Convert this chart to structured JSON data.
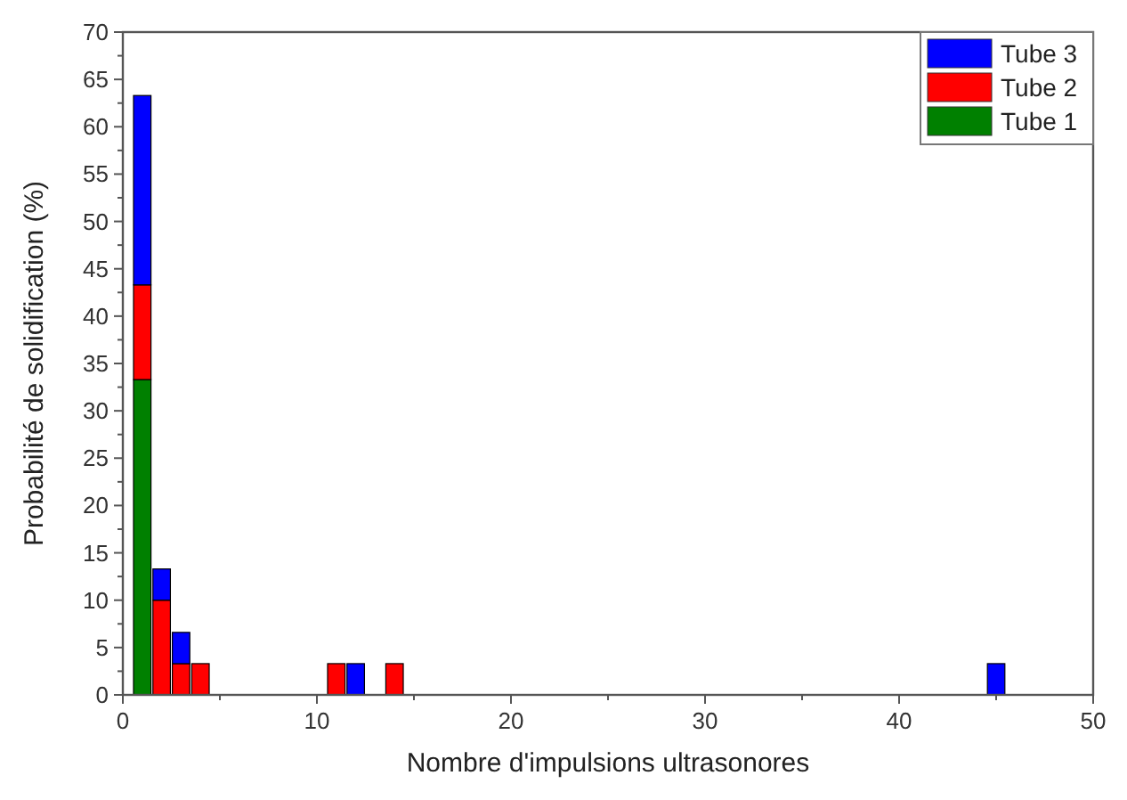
{
  "chart_data": {
    "type": "bar",
    "stacked": true,
    "xlabel": "Nombre d'impulsions ultrasonores",
    "ylabel": "Probabilité de solidification (%)",
    "x": [
      1,
      2,
      3,
      4,
      11,
      12,
      14,
      45
    ],
    "series": [
      {
        "name": "Tube 1",
        "color": "#008000",
        "values": [
          33.3,
          null,
          null,
          null,
          null,
          null,
          null,
          null
        ]
      },
      {
        "name": "Tube 2",
        "color": "#ff0000",
        "values": [
          10,
          10,
          3.3,
          3.3,
          3.3,
          null,
          3.3,
          null
        ]
      },
      {
        "name": "Tube 3",
        "color": "#0000ff",
        "values": [
          20,
          3.3,
          3.3,
          null,
          null,
          3.3,
          null,
          3.3
        ]
      }
    ],
    "xlim": [
      0,
      50
    ],
    "xticks": [
      0,
      10,
      20,
      30,
      40,
      50
    ],
    "ylim": [
      0,
      70
    ],
    "yticks": [
      0,
      5,
      10,
      15,
      20,
      25,
      30,
      35,
      40,
      45,
      50,
      55,
      60,
      65,
      70
    ],
    "legend": "top right",
    "grid": false
  }
}
